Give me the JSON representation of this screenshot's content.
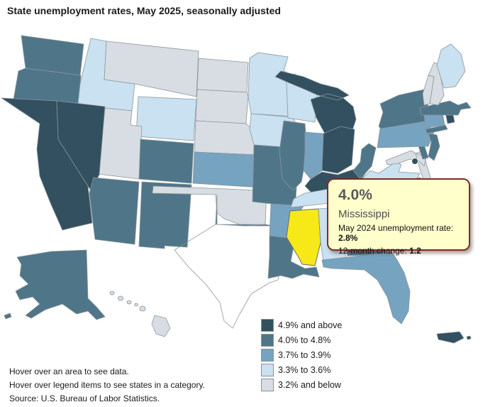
{
  "title": "State unemployment rates, May 2025, seasonally adjusted",
  "tooltip": {
    "value": "4.0%",
    "state": "Mississippi",
    "line1_label": "May 2024 unemployment rate: ",
    "line1_value": "2.8%",
    "line2_label": "12-month change: ",
    "line2_value": "1.2"
  },
  "footer": {
    "line1": "Hover over an area to see data.",
    "line2": "Hover over legend items to see states in a category.",
    "line3": "Source: U.S. Bureau of Labor Statistics."
  },
  "colors": {
    "cat1": "#32505f",
    "cat2": "#4f7588",
    "cat3": "#76a3c0",
    "cat4": "#c9e1f1",
    "cat5": "#d7dde2",
    "highlight": "#f7e917",
    "tooltip_bg": "#ffffcc",
    "tooltip_border": "#7c2e24",
    "state_border": "#8c979e"
  },
  "chart_data": {
    "type": "choropleth",
    "title": "State unemployment rates, May 2025, seasonally adjusted",
    "region": "United States (states, DC, Puerto Rico)",
    "legend": [
      {
        "key": "cat1",
        "label": "4.9% and above",
        "color": "#32505f"
      },
      {
        "key": "cat2",
        "label": "4.0% to 4.8%",
        "color": "#4f7588"
      },
      {
        "key": "cat3",
        "label": "3.7% to 3.9%",
        "color": "#76a3c0"
      },
      {
        "key": "cat4",
        "label": "3.3% to 3.6%",
        "color": "#c9e1f1"
      },
      {
        "key": "cat5",
        "label": "3.2% and below",
        "color": "#d7dde2"
      }
    ],
    "highlight": {
      "state": "Mississippi",
      "abbr": "MS",
      "color": "#f7e917",
      "rate": "4.0%",
      "may_2024_rate": "2.8%",
      "twelve_month_change": "1.2"
    },
    "categories": {
      "CA": "cat1",
      "NV": "cat1",
      "MI": "cat1",
      "OH": "cat1",
      "KY": "cat1",
      "RI": "cat1",
      "DC": "cat1",
      "PR": "cat1",
      "WA": "cat2",
      "OR": "cat2",
      "AK": "cat2",
      "AZ": "cat2",
      "CO": "cat2",
      "NM": "cat2",
      "TX": "cat2",
      "LA": "cat2",
      "MO": "cat2",
      "IL": "cat2",
      "NY": "cat2",
      "NJ": "cat2",
      "MA": "cat2",
      "DE": "cat2",
      "WV": "cat2",
      "SC": "cat2",
      "GA": "cat2",
      "MS": "cat2",
      "KS": "cat3",
      "AR": "cat3",
      "IN": "cat3",
      "PA": "cat3",
      "CT": "cat3",
      "FL": "cat3",
      "NC": "cat3",
      "ID": "cat4",
      "WY": "cat4",
      "MN": "cat4",
      "WI": "cat4",
      "IA": "cat4",
      "ME": "cat4",
      "VA": "cat4",
      "TN": "cat4",
      "AL": "cat4",
      "MT": "cat5",
      "ND": "cat5",
      "SD": "cat5",
      "NE": "cat5",
      "UT": "cat5",
      "OK": "cat5",
      "NH": "cat5",
      "VT": "cat5",
      "MD": "cat5",
      "HI": "cat5"
    }
  }
}
